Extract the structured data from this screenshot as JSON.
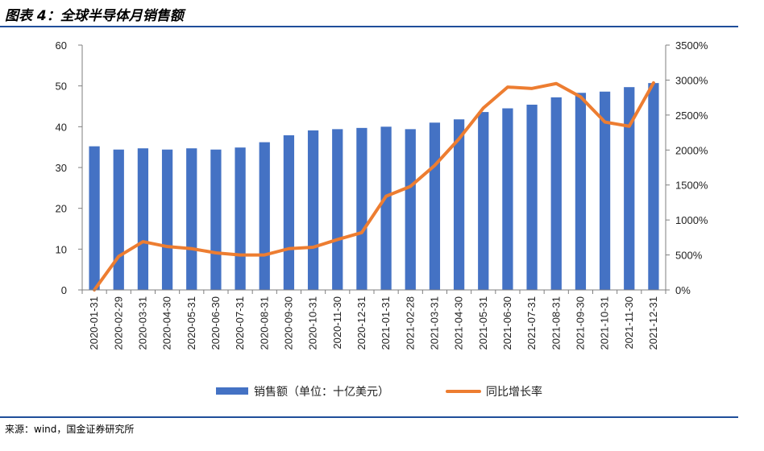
{
  "figure": {
    "title": "图表 4：全球半导体月销售额",
    "source": "来源：wind，国金证券研究所"
  },
  "colors": {
    "bar": "#4472c4",
    "line": "#ed7d31",
    "rule": "#1f4e9a"
  },
  "chart_data": {
    "type": "bar",
    "title": "",
    "xlabel": "",
    "ylabel": "",
    "categories": [
      "2020-01-31",
      "2020-02-29",
      "2020-03-31",
      "2020-04-30",
      "2020-05-31",
      "2020-06-30",
      "2020-07-31",
      "2020-08-31",
      "2020-09-30",
      "2020-10-31",
      "2020-11-30",
      "2020-12-31",
      "2021-01-31",
      "2021-02-28",
      "2021-03-31",
      "2021-04-30",
      "2021-05-31",
      "2021-06-30",
      "2021-07-31",
      "2021-08-31",
      "2021-09-30",
      "2021-10-31",
      "2021-11-30",
      "2021-12-31"
    ],
    "ylim": [
      0,
      60
    ],
    "y_ticks": [
      "0",
      "10",
      "20",
      "30",
      "40",
      "50",
      "60"
    ],
    "y2lim": [
      0,
      3500
    ],
    "y2_ticks": [
      "0%",
      "500%",
      "1000%",
      "1500%",
      "2000%",
      "2500%",
      "3000%",
      "3500%"
    ],
    "legend_position": "bottom",
    "grid": false,
    "series": [
      {
        "name": "销售额（单位：十亿美元）",
        "kind": "bar",
        "axis": "left",
        "values": [
          35.2,
          34.4,
          34.7,
          34.4,
          34.7,
          34.4,
          34.9,
          36.2,
          37.9,
          39.1,
          39.4,
          39.7,
          40.0,
          39.4,
          41.0,
          41.8,
          43.6,
          44.5,
          45.4,
          47.2,
          48.3,
          48.6,
          49.7,
          50.7
        ]
      },
      {
        "name": "同比增长率",
        "kind": "line",
        "axis": "right",
        "values": [
          0,
          480,
          690,
          620,
          590,
          530,
          500,
          500,
          590,
          610,
          720,
          820,
          1340,
          1480,
          1780,
          2160,
          2600,
          2900,
          2880,
          2950,
          2760,
          2400,
          2340,
          2960
        ]
      }
    ]
  }
}
